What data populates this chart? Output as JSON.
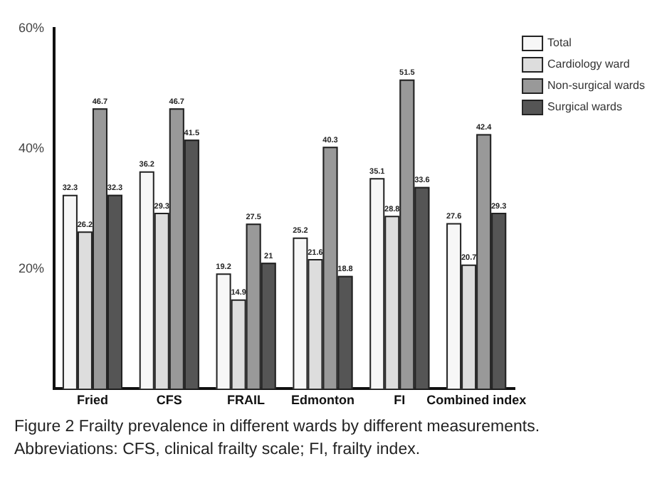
{
  "chart_data": {
    "type": "bar",
    "categories": [
      "Fried",
      "CFS",
      "FRAIL",
      "Edmonton",
      "FI",
      "Combined index"
    ],
    "series": [
      {
        "name": "Total",
        "color": "#f7f7f7",
        "values": [
          32.3,
          36.2,
          19.2,
          25.2,
          35.1,
          27.6
        ]
      },
      {
        "name": "Cardiology ward",
        "color": "#dddddd",
        "values": [
          26.2,
          29.3,
          14.9,
          21.6,
          28.8,
          20.7
        ]
      },
      {
        "name": "Non-surgical wards",
        "color": "#999999",
        "values": [
          46.7,
          46.7,
          27.5,
          40.3,
          51.5,
          42.4
        ]
      },
      {
        "name": "Surgical wards",
        "color": "#555555",
        "values": [
          32.3,
          41.5,
          21.0,
          18.8,
          33.6,
          29.3
        ]
      }
    ],
    "ylim": [
      0,
      60
    ],
    "yticks": [
      {
        "value": 0,
        "label": null
      },
      {
        "value": 20,
        "label": "20%"
      },
      {
        "value": 40,
        "label": "40%"
      },
      {
        "value": 60,
        "label": "60%"
      }
    ],
    "grid": false,
    "legend": "top right",
    "data_labels": true,
    "annotations": [
      "Figure 2 Frailty prevalence in different wards by different measurements.",
      "Abbreviations: CFS, clinical frailty scale; FI, frailty index."
    ]
  }
}
